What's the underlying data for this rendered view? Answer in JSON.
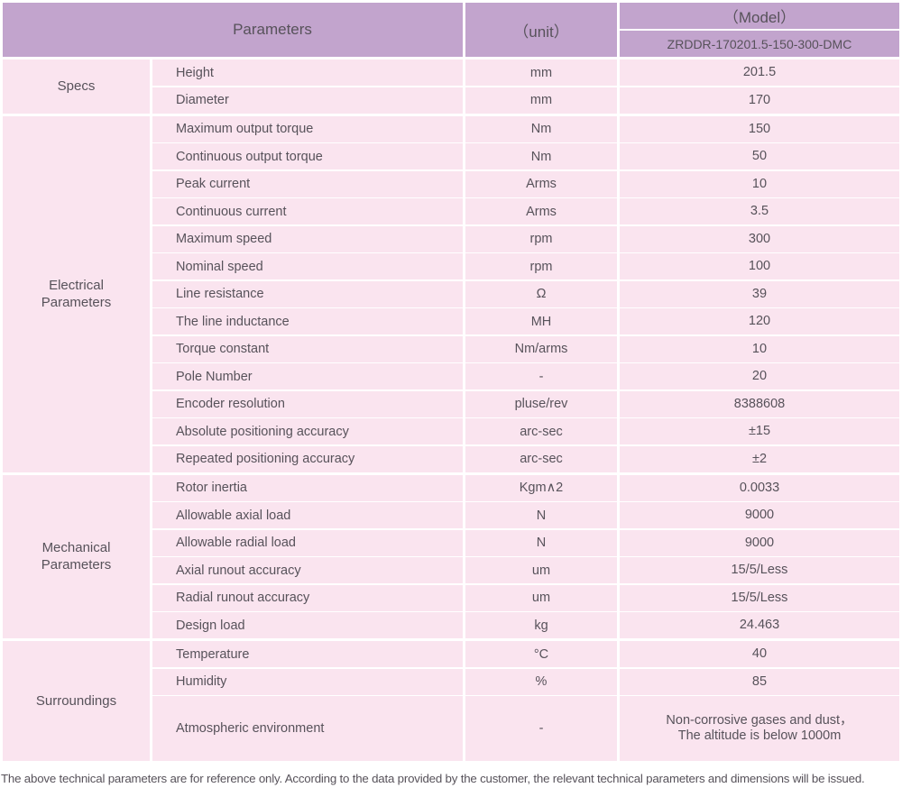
{
  "colors": {
    "header_bg": "#c2a4cd",
    "row_bg": "#fae4ef",
    "divider": "#ffffff",
    "text": "#57525a"
  },
  "header": {
    "parameters_label": "Parameters",
    "unit_label": "（unit）",
    "model_label": "（Model）",
    "model_value": "ZRDDR-170201.5-150-300-DMC"
  },
  "sections": [
    {
      "label": "Specs",
      "label_lines": [
        "Specs"
      ],
      "rows": [
        {
          "param": "Height",
          "unit": "mm",
          "value": "201.5"
        },
        {
          "param": "Diameter",
          "unit": "mm",
          "value": "170"
        }
      ]
    },
    {
      "label": "Electrical Parameters",
      "label_lines": [
        "Electrical",
        "Parameters"
      ],
      "rows": [
        {
          "param": "Maximum output torque",
          "unit": "Nm",
          "value": "150"
        },
        {
          "param": "Continuous output torque",
          "unit": "Nm",
          "value": "50"
        },
        {
          "param": "Peak current",
          "unit": "Arms",
          "value": "10"
        },
        {
          "param": "Continuous current",
          "unit": "Arms",
          "value": "3.5"
        },
        {
          "param": "Maximum speed",
          "unit": "rpm",
          "value": "300"
        },
        {
          "param": "Nominal speed",
          "unit": "rpm",
          "value": "100"
        },
        {
          "param": "Line resistance",
          "unit": "Ω",
          "value": "39"
        },
        {
          "param": "The line inductance",
          "unit": "MH",
          "value": "120"
        },
        {
          "param": "Torque constant",
          "unit": "Nm/arms",
          "value": "10"
        },
        {
          "param": "Pole Number",
          "unit": "-",
          "value": "20"
        },
        {
          "param": "Encoder resolution",
          "unit": "pluse/rev",
          "value": "8388608"
        },
        {
          "param": "Absolute positioning accuracy",
          "unit": "arc-sec",
          "value": "±15"
        },
        {
          "param": "Repeated positioning accuracy",
          "unit": "arc-sec",
          "value": "±2"
        }
      ]
    },
    {
      "label": "Mechanical Parameters",
      "label_lines": [
        "Mechanical",
        "Parameters"
      ],
      "rows": [
        {
          "param": "Rotor inertia",
          "unit": "Kgm∧2",
          "value": "0.0033"
        },
        {
          "param": "Allowable axial load",
          "unit": "N",
          "value": "9000"
        },
        {
          "param": "Allowable radial load",
          "unit": "N",
          "value": "9000"
        },
        {
          "param": "Axial runout accuracy",
          "unit": "um",
          "value": "15/5/Less"
        },
        {
          "param": "Radial runout accuracy",
          "unit": "um",
          "value": "15/5/Less"
        },
        {
          "param": "Design load",
          "unit": "kg",
          "value": "24.463"
        }
      ]
    },
    {
      "label": "Surroundings",
      "label_lines": [
        "Surroundings"
      ],
      "rows": [
        {
          "param": "Temperature",
          "unit": "°C",
          "value": "40"
        },
        {
          "param": "Humidity",
          "unit": "%",
          "value": "85"
        },
        {
          "param": "Atmospheric environment",
          "unit": "-",
          "value": "Non-corrosive gases and dust，",
          "value_line2": "The altitude is below 1000m",
          "tall": true
        }
      ]
    }
  ],
  "footer": {
    "note": "The above technical parameters are for reference only. According to the data provided by the customer, the relevant technical parameters and dimensions will be issued."
  }
}
